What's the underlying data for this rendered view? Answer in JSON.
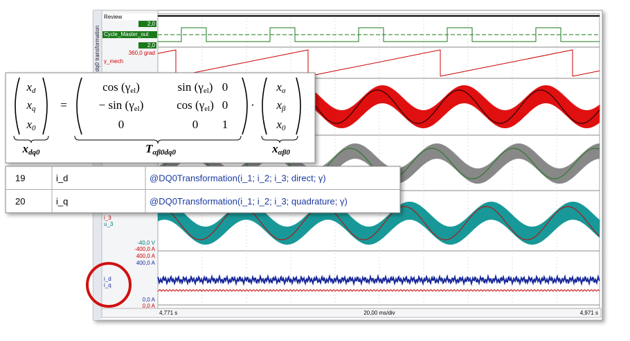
{
  "scope": {
    "side_title": "dq0 transformation",
    "review": "Review",
    "cycle_max": "2,0",
    "cycle_name": "Cycle_Master_out",
    "cycle_min": "2,0",
    "angle_max": "360,0 grad",
    "angle_name": "γ_mech",
    "i3_name": "i_3",
    "u3_name": "u_3",
    "u3_min": "-40,0 V",
    "i3_min": "-400,0 A",
    "iq_max": "400,0 A",
    "id_max": "400,0 A",
    "id_name": "i_d",
    "iq_name": "i_q",
    "id_min": "0,0 A",
    "iq_min": "0,0 A",
    "time_start": "4,771 s",
    "time_div": "20,00 ms/div",
    "time_end": "4,971 s"
  },
  "formula": {
    "lhs": [
      {
        "base": "x",
        "sub": "d"
      },
      {
        "base": "x",
        "sub": "q"
      },
      {
        "base": "x",
        "sub": "0"
      }
    ],
    "equals": "=",
    "matrix": [
      [
        {
          "pre": "cos (γ",
          "sub": "el",
          "post": ")"
        },
        {
          "pre": "sin (γ",
          "sub": "el",
          "post": ")"
        },
        {
          "pre": "0"
        }
      ],
      [
        {
          "pre": "− sin (γ",
          "sub": "el",
          "post": ")"
        },
        {
          "pre": "cos (γ",
          "sub": "el",
          "post": ")"
        },
        {
          "pre": "0"
        }
      ],
      [
        {
          "pre": "0"
        },
        {
          "pre": "0"
        },
        {
          "pre": "1"
        }
      ]
    ],
    "dot": "·",
    "rhs": [
      {
        "base": "x",
        "sub": "α"
      },
      {
        "base": "x",
        "sub": "β"
      },
      {
        "base": "x",
        "sub": "0"
      }
    ],
    "under": [
      {
        "base": "x",
        "sub": "dq0"
      },
      {
        "base": "T",
        "sub": "αβ0dq0"
      },
      {
        "base": "x",
        "sub": "αβ0"
      }
    ]
  },
  "table": {
    "rows": [
      [
        "19",
        "i_d",
        "@DQ0Transformation(i_1; i_2; i_3; direct; γ)"
      ],
      [
        "20",
        "i_q",
        "@DQ0Transformation(i_1; i_2; i_3; quadrature; γ)"
      ]
    ]
  }
}
